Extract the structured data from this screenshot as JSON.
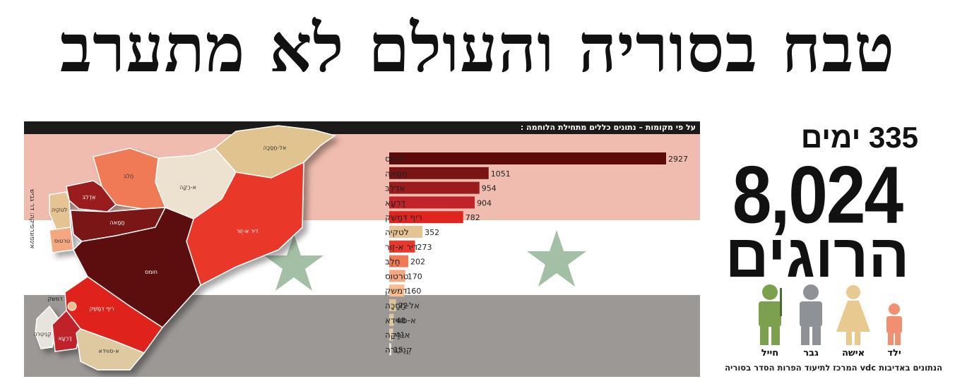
{
  "headline": "טבח בסוריה והעולם לא מתערב",
  "subtitle": "על פי מקומות – נתונים כללים מתחילת הלוחמה :",
  "credit": "אינפוגרפיקה: דר גביש",
  "stat": {
    "days": "335 ימים",
    "total": "8,024",
    "killed_label": "הרוגים"
  },
  "victim_types": [
    {
      "label": "חייל",
      "color": "#7aa050",
      "icon": "soldier-icon"
    },
    {
      "label": "גבר",
      "color": "#8e9196",
      "icon": "man-icon"
    },
    {
      "label": "אישה",
      "color": "#e8c990",
      "icon": "woman-icon"
    },
    {
      "label": "ילד",
      "color": "#f09070",
      "icon": "child-icon"
    }
  ],
  "source": "הנתונים באדיבות vdc המרכז לתיעוד הפרות הסדר בסוריה",
  "colors": {
    "flag_red": "#efbcaf",
    "flag_black": "#9b9896",
    "star": "#a3bfa5"
  },
  "chart_data": {
    "type": "bar",
    "orientation": "horizontal",
    "categories": [
      "חומס",
      "חַמַאה",
      "אִדְלִבּ",
      "דַּרְעָא",
      "ריף דִּמַשְׁק",
      "לטקיה",
      "דיר א-זֻוּר",
      "חַלֵבּ",
      "טרטוס",
      "דמשק",
      "אל-חַסַכָּה",
      "א-סווידא",
      "א-רַקָּה",
      "קֻנֵיטְרה"
    ],
    "values": [
      2927,
      1051,
      954,
      904,
      782,
      352,
      273,
      202,
      170,
      160,
      72,
      48,
      41,
      15
    ],
    "colors": [
      "#5c0a0a",
      "#7a1414",
      "#9a1c1e",
      "#c0232a",
      "#e0241f",
      "#e5c392",
      "#e9382b",
      "#f07a55",
      "#f5a782",
      "#f8bc8f",
      "#dbc49a",
      "#dfc9a0",
      "#e2cfb0",
      "#e8e3dc"
    ],
    "xlim": [
      0,
      2927
    ]
  },
  "map_regions": [
    {
      "name": "אל-חַסַכָּה",
      "color": "#e1c38f"
    },
    {
      "name": "א-רַקָּה",
      "color": "#ece2cf"
    },
    {
      "name": "חַלֵבּ",
      "color": "#f07a55"
    },
    {
      "name": "אִדְלִבּ",
      "color": "#9a1c1e"
    },
    {
      "name": "לטקיה",
      "color": "#e5c392"
    },
    {
      "name": "טרטוס",
      "color": "#f5a782"
    },
    {
      "name": "חַמַאה",
      "color": "#7a1414"
    },
    {
      "name": "דיר א-זֻוּר",
      "color": "#e9382b"
    },
    {
      "name": "חומס",
      "color": "#5c0a0a"
    },
    {
      "name": "ריף דִּמַשְׁק",
      "color": "#e0241f"
    },
    {
      "name": "דמשק",
      "color": "#f8bc8f"
    },
    {
      "name": "קֻנֵיטְרה",
      "color": "#e8e3dc"
    },
    {
      "name": "דַּרְעָא",
      "color": "#c0232a"
    },
    {
      "name": "א-סווידא",
      "color": "#dfc9a0"
    }
  ]
}
